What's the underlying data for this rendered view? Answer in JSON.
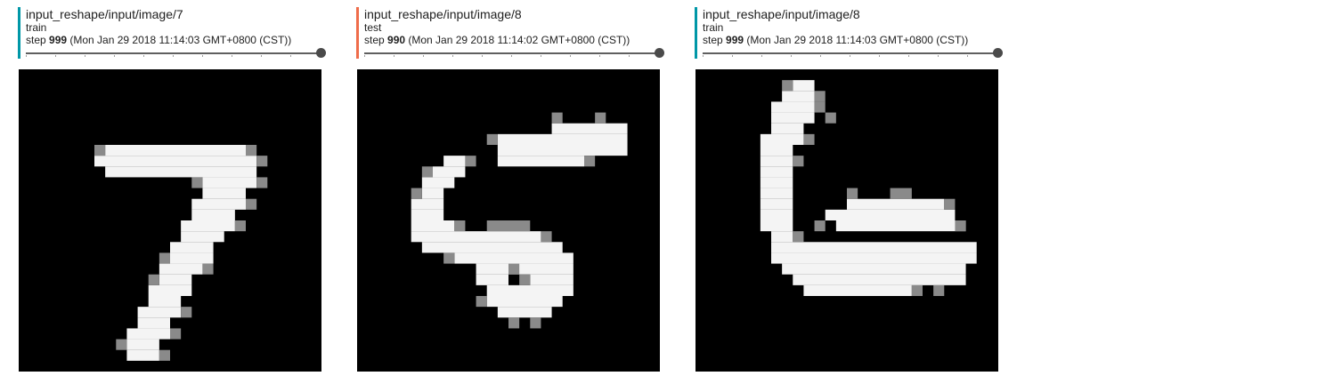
{
  "cards": [
    {
      "title": "input_reshape/input/image/7",
      "run": "train",
      "step_prefix": "step ",
      "step_value": "999",
      "step_time": " (Mon Jan 29 2018 11:14:03 GMT+0800 (CST))",
      "accent": "#0097a7",
      "image": {
        "digit": "7",
        "alt": "MNIST digit seven"
      }
    },
    {
      "title": "input_reshape/input/image/8",
      "run": "test",
      "step_prefix": "step ",
      "step_value": "990",
      "step_time": " (Mon Jan 29 2018 11:14:02 GMT+0800 (CST))",
      "accent": "#ef6c4a",
      "image": {
        "digit": "5",
        "alt": "MNIST digit five"
      }
    },
    {
      "title": "input_reshape/input/image/8",
      "run": "train",
      "step_prefix": "step ",
      "step_value": "999",
      "step_time": " (Mon Jan 29 2018 11:14:03 GMT+0800 (CST))",
      "accent": "#0097a7",
      "image": {
        "digit": "6",
        "alt": "MNIST digit six"
      }
    }
  ]
}
